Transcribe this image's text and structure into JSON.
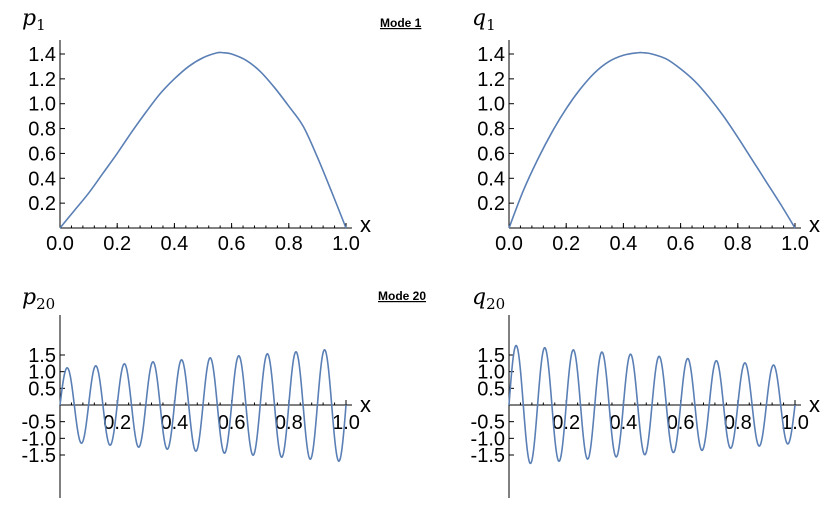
{
  "mode_labels": {
    "mode1": "Mode 1",
    "mode20": "Mode 20"
  },
  "chart_data": [
    {
      "type": "line",
      "title_main": "p",
      "title_sub": "1",
      "xlabel": "x",
      "xlim": [
        0,
        1
      ],
      "ylim": [
        0,
        1.5
      ],
      "x_ticks": [
        "0.0",
        "0.2",
        "0.4",
        "0.6",
        "0.8",
        "1.0"
      ],
      "y_ticks": [
        "0.2",
        "0.4",
        "0.6",
        "0.8",
        "1.0",
        "1.2",
        "1.4"
      ],
      "series": [
        {
          "x": [
            0,
            0.05,
            0.1,
            0.15,
            0.2,
            0.25,
            0.3,
            0.35,
            0.4,
            0.45,
            0.5,
            0.55,
            0.57,
            0.6,
            0.65,
            0.7,
            0.75,
            0.8,
            0.85,
            0.9,
            0.95,
            1.0
          ],
          "y": [
            0.0,
            0.14,
            0.28,
            0.44,
            0.6,
            0.77,
            0.93,
            1.08,
            1.2,
            1.3,
            1.37,
            1.41,
            1.41,
            1.4,
            1.35,
            1.26,
            1.13,
            0.98,
            0.82,
            0.57,
            0.29,
            0.0
          ]
        }
      ]
    },
    {
      "type": "line",
      "title_main": "q",
      "title_sub": "1",
      "xlabel": "x",
      "xlim": [
        0,
        1
      ],
      "ylim": [
        0,
        1.5
      ],
      "x_ticks": [
        "0.0",
        "0.2",
        "0.4",
        "0.6",
        "0.8",
        "1.0"
      ],
      "y_ticks": [
        "0.2",
        "0.4",
        "0.6",
        "0.8",
        "1.0",
        "1.2",
        "1.4"
      ],
      "series": [
        {
          "x": [
            0,
            0.05,
            0.1,
            0.15,
            0.2,
            0.25,
            0.3,
            0.35,
            0.4,
            0.45,
            0.47,
            0.5,
            0.55,
            0.6,
            0.65,
            0.7,
            0.75,
            0.8,
            0.85,
            0.9,
            0.95,
            1.0
          ],
          "y": [
            0.0,
            0.3,
            0.55,
            0.77,
            0.96,
            1.12,
            1.25,
            1.34,
            1.39,
            1.41,
            1.41,
            1.4,
            1.36,
            1.28,
            1.18,
            1.05,
            0.9,
            0.73,
            0.55,
            0.37,
            0.19,
            0.0
          ]
        }
      ]
    },
    {
      "type": "line",
      "title_main": "p",
      "title_sub": "20",
      "xlabel": "x",
      "xlim": [
        0,
        1
      ],
      "ylim": [
        -1.8,
        1.8
      ],
      "x_ticks": [
        "0.2",
        "0.4",
        "0.6",
        "0.8",
        "1.0"
      ],
      "y_ticks": [
        "1.5",
        "1.0",
        "0.5",
        "-0.5",
        "-1.0",
        "-1.5"
      ],
      "oscillation": {
        "half_periods": 20,
        "amp_start": 1.1,
        "amp_end": 1.7,
        "amp_final": 1.6
      }
    },
    {
      "type": "line",
      "title_main": "q",
      "title_sub": "20",
      "xlabel": "x",
      "xlim": [
        0,
        1
      ],
      "ylim": [
        -1.8,
        1.8
      ],
      "x_ticks": [
        "0.2",
        "0.4",
        "0.6",
        "0.8",
        "1.0"
      ],
      "y_ticks": [
        "1.5",
        "1.0",
        "0.5",
        "-0.5",
        "-1.0",
        "-1.5"
      ],
      "oscillation": {
        "half_periods": 20,
        "amp_start": 1.8,
        "amp_end": 1.15,
        "amp_final": 1.2
      }
    }
  ]
}
